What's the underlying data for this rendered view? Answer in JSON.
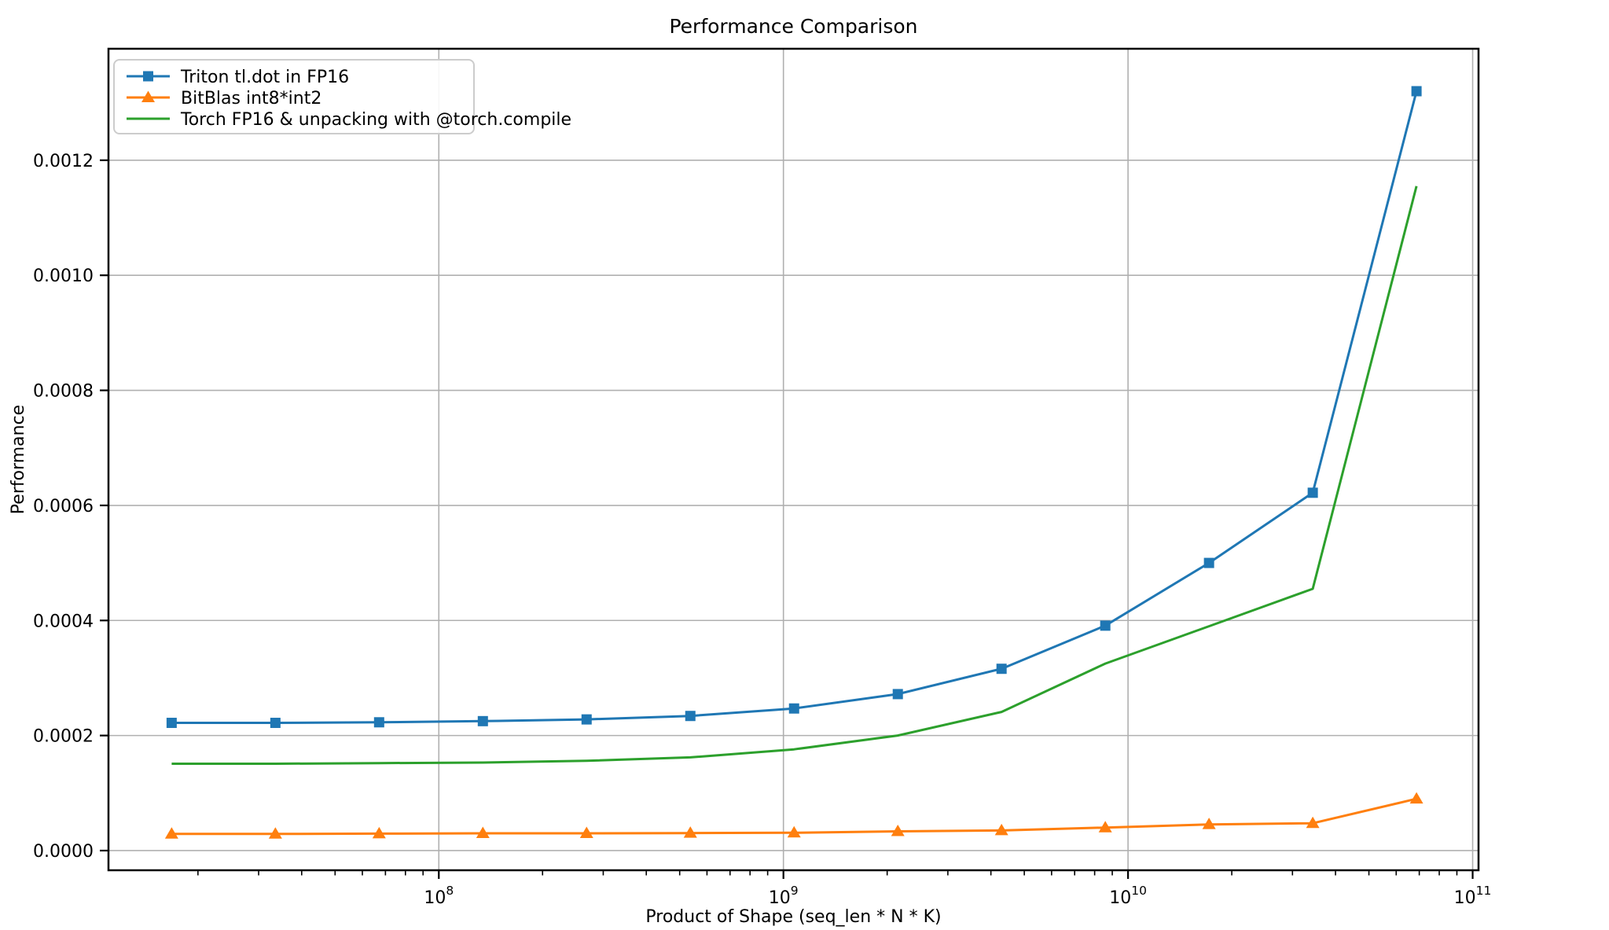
{
  "figure": {
    "title": "Performance Comparison"
  },
  "chart_data": {
    "type": "line",
    "title": "Performance Comparison",
    "xlabel": "Product of Shape (seq_len * N * K)",
    "ylabel": "Performance",
    "xscale": "log",
    "yscale": "linear",
    "grid": true,
    "grid_color": "#b0b0b0",
    "legend_position": "upper left",
    "xlim": [
      11000000,
      104000000000
    ],
    "ylim": [
      -3.42e-05,
      0.0013938
    ],
    "xticks": [
      100000000,
      1000000000,
      10000000000,
      100000000000
    ],
    "xtick_labels": [
      "10^8",
      "10^9",
      "10^10",
      "10^11"
    ],
    "yticks": [
      0.0,
      0.0002,
      0.0004,
      0.0006,
      0.0008,
      0.001,
      0.0012
    ],
    "ytick_labels": [
      "0.0000",
      "0.0002",
      "0.0004",
      "0.0006",
      "0.0008",
      "0.0010",
      "0.0012"
    ],
    "x": [
      16777216,
      33554432,
      67108864,
      134217728,
      268435456,
      536870912,
      1073741824,
      2147483648,
      4294967296,
      8589934592,
      17179869184,
      34359738368,
      68719476736
    ],
    "series": [
      {
        "name": "Triton tl.dot in FP16",
        "color": "#1f77b4",
        "marker": "square",
        "values": [
          0.000222,
          0.000222,
          0.000223,
          0.000225,
          0.000228,
          0.000234,
          0.000247,
          0.000272,
          0.000316,
          0.000391,
          0.0005,
          0.000622,
          0.00132
        ]
      },
      {
        "name": "BitBlas int8*int2",
        "color": "#ff7f0e",
        "marker": "triangle",
        "values": [
          2.9e-05,
          2.9e-05,
          2.95e-05,
          3e-05,
          3e-05,
          3.05e-05,
          3.1e-05,
          3.35e-05,
          3.5e-05,
          4e-05,
          4.55e-05,
          4.75e-05,
          9e-05
        ]
      },
      {
        "name": "Torch FP16 & unpacking with @torch.compile",
        "color": "#2ca02c",
        "marker": "none",
        "values": [
          0.000151,
          0.000151,
          0.000152,
          0.000153,
          0.000156,
          0.000162,
          0.000176,
          0.0002,
          0.000241,
          0.000325,
          0.00039,
          0.000455,
          0.001155
        ]
      }
    ]
  }
}
